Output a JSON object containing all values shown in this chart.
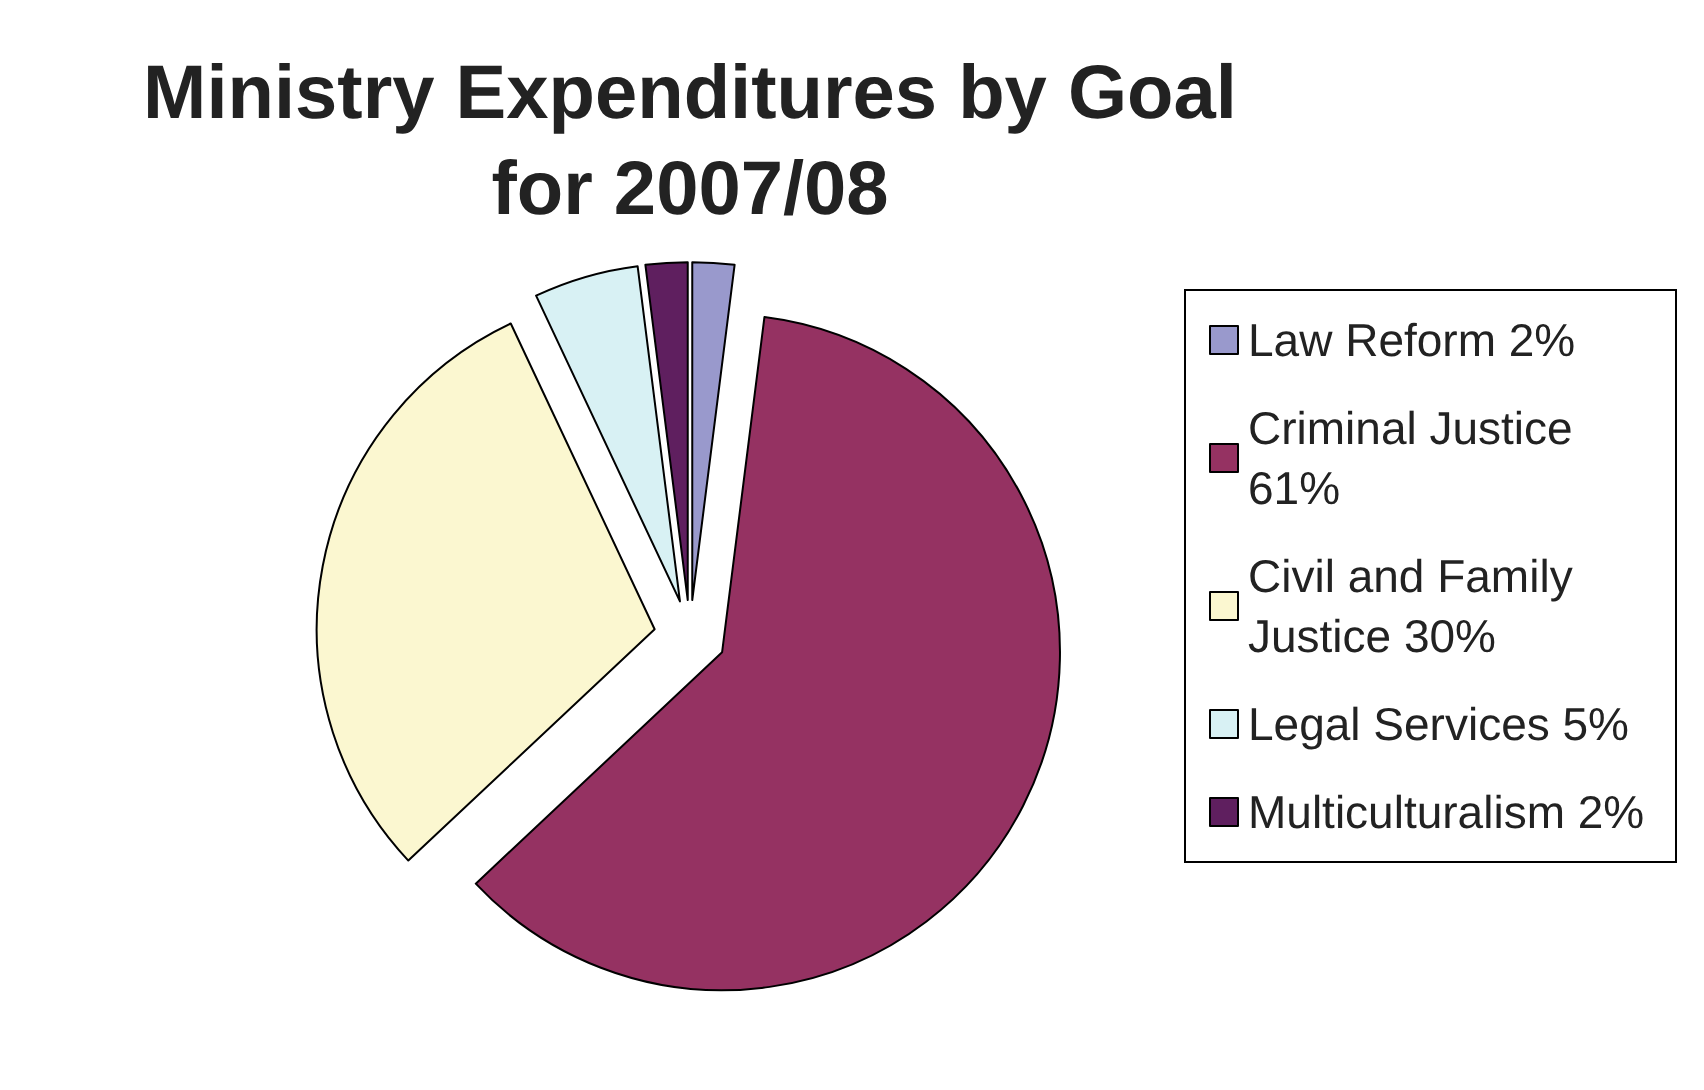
{
  "chart_data": {
    "type": "pie",
    "title": "Ministry Expenditures by Goal\nfor 2007/08",
    "categories": [
      "Law Reform 2%",
      "Criminal Justice 61%",
      "Civil and Family Justice 30%",
      "Legal Services 5%",
      "Multiculturalism 2%"
    ],
    "values": [
      2,
      61,
      30,
      5,
      2
    ],
    "colors": [
      "#9999cc",
      "#953262",
      "#fbf7d0",
      "#d8f1f4",
      "#5f1f5f"
    ],
    "legend": "right"
  }
}
